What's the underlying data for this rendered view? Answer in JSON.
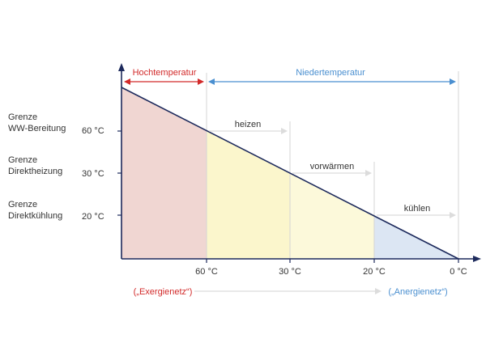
{
  "colors": {
    "axis": "#1d2a5c",
    "red": "#d22a2a",
    "blue": "#4a8fd0",
    "grey": "#dcdcdc",
    "zone_hoch": "#f0d6d2",
    "zone_heizen": "#fbf6cc",
    "zone_vorw": "#fcf9da",
    "zone_kuehl": "#dce6f3"
  },
  "top_labels": {
    "hoch": "Hochtemperatur",
    "nieder": "Niedertemperatur"
  },
  "y_labels": [
    {
      "line1": "Grenze",
      "line2": "WW-Bereitung",
      "value": "60 °C"
    },
    {
      "line1": "Grenze",
      "line2": "Direktheizung",
      "value": "30 °C"
    },
    {
      "line1": "Grenze",
      "line2": "Direktkühlung",
      "value": "20 °C"
    }
  ],
  "x_ticks": [
    "60 °C",
    "30 °C",
    "20 °C",
    "0 °C"
  ],
  "zones": [
    "heizen",
    "vorwärmen",
    "kühlen"
  ],
  "bottom": {
    "left": "(„Exergienetz“)",
    "right": "(„Anergienetz“)"
  }
}
